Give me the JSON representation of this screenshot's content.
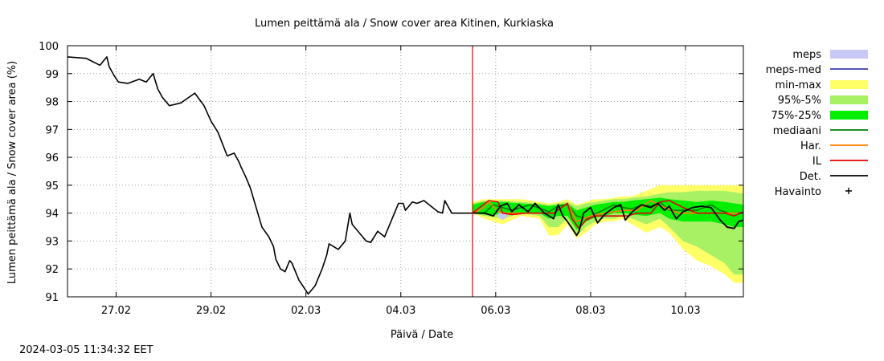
{
  "timestamp": "2024-03-05 11:34:32 EET",
  "chart_data": {
    "type": "line",
    "title": "Lumen peittämä ala / Snow cover area Kitinen, Kurkiaska",
    "xlabel": "Päivä / Date",
    "ylabel": "Lumen peittämä ala / Snow cover area (%)",
    "ylim": [
      91,
      100
    ],
    "xlim": [
      0,
      14.6
    ],
    "yticks": [
      91,
      92,
      93,
      94,
      95,
      96,
      97,
      98,
      99,
      100
    ],
    "xticks": [
      {
        "pos": 1.05,
        "label": "27.02"
      },
      {
        "pos": 3.1,
        "label": "29.02"
      },
      {
        "pos": 5.15,
        "label": "02.03"
      },
      {
        "pos": 7.2,
        "label": "04.03"
      },
      {
        "pos": 9.25,
        "label": "06.03"
      },
      {
        "pos": 11.3,
        "label": "08.03"
      },
      {
        "pos": 13.35,
        "label": "10.03"
      }
    ],
    "grid": true,
    "forecast_start": 8.75,
    "legend": [
      {
        "label": "meps",
        "kind": "band",
        "color": "#c8c8f5"
      },
      {
        "label": "meps-med",
        "kind": "line",
        "color": "#3c3cb4"
      },
      {
        "label": "min-max",
        "kind": "band",
        "color": "#ffff66"
      },
      {
        "label": "95%-5%",
        "kind": "band",
        "color": "#a8f064"
      },
      {
        "label": "75%-25%",
        "kind": "band",
        "color": "#00ee00"
      },
      {
        "label": "mediaani",
        "kind": "line",
        "color": "#008000"
      },
      {
        "label": "Har.",
        "kind": "line",
        "color": "#ff8000"
      },
      {
        "label": "IL",
        "kind": "line",
        "color": "#e00000"
      },
      {
        "label": "Det.",
        "kind": "line",
        "color": "#000000"
      },
      {
        "label": "Havainto",
        "kind": "marker",
        "color": "#000000"
      }
    ],
    "observed": {
      "name": "Det.",
      "x": [
        0.0,
        0.4,
        0.7,
        0.85,
        0.9,
        1.0,
        1.1,
        1.3,
        1.55,
        1.7,
        1.85,
        1.95,
        2.05,
        2.2,
        2.45,
        2.75,
        2.95,
        3.1,
        3.25,
        3.45,
        3.6,
        3.7,
        3.75,
        3.85,
        3.95,
        4.2,
        4.35,
        4.45,
        4.5,
        4.6,
        4.7,
        4.8,
        4.85,
        5.0,
        5.2,
        5.35,
        5.5,
        5.6,
        5.65,
        5.85,
        6.0,
        6.05,
        6.1,
        6.15,
        6.35,
        6.45,
        6.55,
        6.7,
        6.85,
        7.05,
        7.15,
        7.25,
        7.3,
        7.45,
        7.55,
        7.7,
        8.0,
        8.1,
        8.15,
        8.3,
        8.45,
        8.75
      ],
      "y": [
        99.6,
        99.55,
        99.3,
        99.6,
        99.25,
        98.95,
        98.7,
        98.65,
        98.8,
        98.7,
        99.0,
        98.45,
        98.15,
        97.85,
        97.95,
        98.3,
        97.85,
        97.3,
        96.9,
        96.05,
        96.15,
        95.85,
        95.65,
        95.3,
        94.9,
        93.5,
        93.15,
        92.8,
        92.35,
        92.0,
        91.9,
        92.3,
        92.2,
        91.6,
        91.1,
        91.4,
        92.0,
        92.5,
        92.9,
        92.7,
        93.0,
        93.5,
        94.0,
        93.6,
        93.2,
        93.0,
        92.95,
        93.35,
        93.15,
        93.95,
        94.35,
        94.35,
        94.1,
        94.4,
        94.35,
        94.45,
        94.05,
        94.0,
        94.45,
        94.0,
        94.0,
        94.0
      ]
    },
    "series": [
      {
        "name": "mediaani",
        "x": [
          8.75,
          9.0,
          9.2,
          9.6,
          10.0,
          10.4,
          10.6,
          10.8,
          11.0,
          11.2,
          11.5,
          11.8,
          12.0,
          12.2,
          12.4,
          12.6,
          12.8,
          13.0,
          13.3,
          13.6,
          13.9,
          14.1,
          14.3,
          14.6
        ],
        "y": [
          94.0,
          94.0,
          94.3,
          94.1,
          94.3,
          94.05,
          94.25,
          94.3,
          93.9,
          93.8,
          94.05,
          94.3,
          94.2,
          94.15,
          94.3,
          94.25,
          94.4,
          94.1,
          94.1,
          94.1,
          94.3,
          94.1,
          94.0,
          94.0
        ]
      },
      {
        "name": "Har.",
        "x": [
          8.75,
          9.0,
          9.1,
          9.3,
          9.5,
          9.8,
          10.1,
          10.5,
          10.8,
          11.0,
          11.3,
          11.6,
          12.0,
          12.3,
          12.6,
          12.9,
          13.2,
          13.5,
          13.8,
          14.1,
          14.4,
          14.6
        ],
        "y": [
          94.0,
          94.2,
          94.4,
          94.05,
          94.0,
          94.0,
          94.0,
          94.0,
          94.35,
          93.7,
          93.9,
          94.0,
          94.1,
          94.1,
          94.45,
          94.2,
          94.0,
          94.0,
          94.0,
          94.0,
          94.0,
          94.0
        ]
      },
      {
        "name": "IL",
        "x": [
          8.75,
          9.1,
          9.3,
          9.4,
          9.6,
          9.9,
          10.2,
          10.5,
          10.8,
          10.9,
          11.05,
          11.2,
          11.4,
          11.7,
          11.9,
          12.0,
          12.1,
          12.3,
          12.6,
          12.8,
          13.0,
          13.3,
          13.6,
          13.9,
          14.2,
          14.4,
          14.6
        ],
        "y": [
          94.0,
          94.45,
          94.4,
          94.0,
          93.95,
          94.0,
          94.0,
          94.0,
          94.35,
          93.8,
          93.45,
          93.75,
          93.9,
          93.9,
          93.9,
          93.9,
          93.9,
          94.0,
          94.0,
          94.4,
          94.45,
          94.2,
          94.0,
          94.0,
          94.0,
          93.9,
          94.05
        ]
      },
      {
        "name": "Det.",
        "x": [
          8.75,
          9.0,
          9.2,
          9.35,
          9.5,
          9.6,
          9.75,
          9.95,
          10.1,
          10.3,
          10.5,
          10.6,
          10.7,
          10.8,
          10.9,
          11.0,
          11.05,
          11.15,
          11.3,
          11.45,
          11.6,
          11.8,
          11.95,
          12.05,
          12.2,
          12.4,
          12.6,
          12.75,
          12.9,
          13.0,
          13.15,
          13.3,
          13.5,
          13.7,
          13.9,
          14.1,
          14.25,
          14.4,
          14.5,
          14.6
        ],
        "y": [
          94.0,
          94.0,
          93.9,
          94.25,
          94.35,
          94.05,
          94.3,
          94.05,
          94.35,
          94.0,
          93.8,
          94.3,
          93.9,
          93.7,
          93.45,
          93.2,
          93.35,
          94.0,
          94.2,
          93.65,
          93.95,
          94.2,
          94.3,
          93.75,
          94.05,
          94.3,
          94.2,
          94.35,
          94.1,
          94.25,
          93.8,
          94.05,
          94.2,
          94.25,
          94.2,
          93.75,
          93.5,
          93.45,
          93.7,
          93.75
        ]
      }
    ],
    "bands": [
      {
        "name": "min-max",
        "x": [
          8.75,
          9.0,
          9.4,
          9.8,
          10.2,
          10.4,
          10.6,
          10.8,
          11.0,
          11.2,
          11.4,
          11.6,
          11.8,
          12.0,
          12.2,
          12.5,
          12.8,
          13.0,
          13.3,
          13.6,
          13.9,
          14.2,
          14.4,
          14.6
        ],
        "low": [
          94.0,
          93.8,
          93.6,
          93.9,
          93.8,
          93.2,
          93.2,
          93.6,
          93.1,
          93.3,
          93.6,
          93.7,
          93.7,
          93.8,
          93.6,
          93.3,
          93.5,
          93.3,
          92.7,
          92.3,
          92.1,
          91.8,
          91.5,
          91.5
        ],
        "high": [
          94.4,
          94.5,
          94.5,
          94.5,
          94.4,
          94.35,
          94.4,
          94.5,
          94.3,
          94.4,
          94.5,
          94.5,
          94.55,
          94.6,
          94.6,
          94.8,
          95.0,
          95.0,
          95.0,
          95.0,
          95.0,
          95.0,
          95.0,
          95.0
        ]
      },
      {
        "name": "95%-5%",
        "x": [
          8.75,
          9.0,
          9.4,
          9.8,
          10.2,
          10.4,
          10.6,
          10.8,
          11.0,
          11.2,
          11.4,
          11.6,
          11.8,
          12.0,
          12.2,
          12.5,
          12.8,
          13.0,
          13.3,
          13.6,
          13.9,
          14.2,
          14.4,
          14.6
        ],
        "low": [
          94.0,
          93.9,
          93.8,
          94.0,
          93.9,
          93.5,
          93.5,
          93.8,
          93.2,
          93.5,
          93.7,
          93.8,
          93.8,
          93.9,
          93.8,
          93.6,
          93.8,
          93.5,
          93.0,
          92.8,
          92.5,
          92.2,
          91.8,
          91.8
        ],
        "high": [
          94.35,
          94.45,
          94.45,
          94.4,
          94.35,
          94.3,
          94.35,
          94.4,
          94.25,
          94.35,
          94.4,
          94.45,
          94.5,
          94.5,
          94.55,
          94.6,
          94.7,
          94.75,
          94.75,
          94.8,
          94.8,
          94.8,
          94.75,
          94.7
        ]
      },
      {
        "name": "75%-25%",
        "x": [
          8.75,
          9.0,
          9.4,
          9.8,
          10.2,
          10.4,
          10.6,
          10.8,
          11.0,
          11.2,
          11.4,
          11.6,
          11.8,
          12.0,
          12.2,
          12.5,
          12.8,
          13.0,
          13.3,
          13.6,
          13.9,
          14.2,
          14.4,
          14.6
        ],
        "low": [
          94.0,
          93.95,
          93.95,
          94.0,
          94.0,
          93.8,
          93.9,
          93.9,
          93.4,
          93.7,
          93.85,
          93.9,
          94.0,
          94.0,
          93.95,
          93.9,
          94.0,
          93.8,
          93.7,
          93.7,
          93.7,
          93.6,
          93.5,
          93.5
        ],
        "high": [
          94.3,
          94.4,
          94.4,
          94.35,
          94.3,
          94.25,
          94.3,
          94.35,
          94.1,
          94.2,
          94.3,
          94.35,
          94.4,
          94.4,
          94.45,
          94.5,
          94.55,
          94.5,
          94.45,
          94.4,
          94.45,
          94.4,
          94.35,
          94.3
        ]
      },
      {
        "name": "meps",
        "x": [
          9.3,
          9.4,
          9.5
        ],
        "low": [
          93.85,
          93.75,
          93.85
        ],
        "high": [
          94.0,
          94.0,
          94.0
        ]
      }
    ]
  }
}
